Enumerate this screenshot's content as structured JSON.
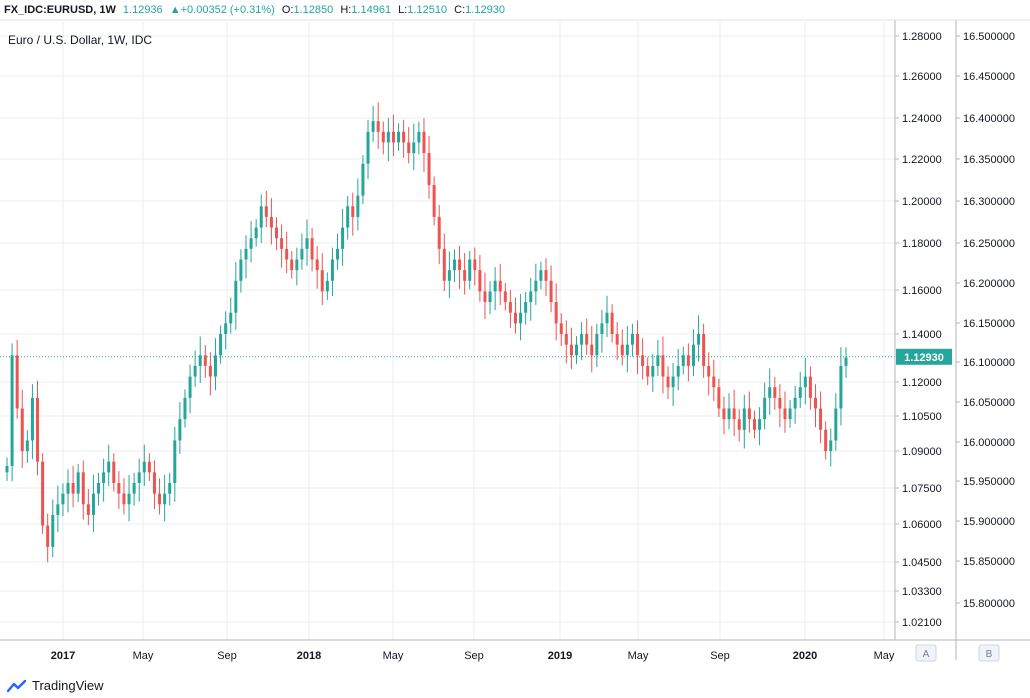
{
  "header": {
    "symbol": "FX_IDC:EURUSD, 1W",
    "last": "1.12936",
    "change": "▲+0.00352 (+0.31%)",
    "open_label": "O:",
    "open": "1.12850",
    "high_label": "H:",
    "high": "1.14961",
    "low_label": "L:",
    "low": "1.12510",
    "close_label": "C:",
    "close": "1.12930"
  },
  "legend": {
    "title": "Euro / U.S. Dollar, 1W, IDC"
  },
  "footer": {
    "brand": "TradingView"
  },
  "axis_buttons": {
    "a": "A",
    "b": "B"
  },
  "colors": {
    "up": "#26a69a",
    "down": "#ef5350",
    "grid": "#e9ecf2",
    "price_line": "#26a69a",
    "axis": "#b2b5be"
  },
  "chart_data": {
    "type": "candlestick",
    "title": "Euro / U.S. Dollar, 1W, IDC",
    "last_price_label": "1.12930",
    "y_ticks_left": [
      "1.28000",
      "1.26000",
      "1.24000",
      "1.22000",
      "1.20000",
      "1.18000",
      "1.16000",
      "1.14000",
      "1.12000",
      "1.10500",
      "1.09000",
      "1.07500",
      "1.06000",
      "1.04500",
      "1.03300",
      "1.02100"
    ],
    "y_ticks_right": [
      "16.500000",
      "16.450000",
      "16.400000",
      "16.350000",
      "16.300000",
      "16.250000",
      "16.200000",
      "16.150000",
      "16.100000",
      "16.050000",
      "16.000000",
      "15.950000",
      "15.900000",
      "15.850000",
      "15.800000"
    ],
    "x_ticks": [
      "2017",
      "May",
      "Sep",
      "2018",
      "May",
      "Sep",
      "2019",
      "May",
      "Sep",
      "2020",
      "May"
    ],
    "x_tick_bold": [
      true,
      false,
      false,
      true,
      false,
      false,
      true,
      false,
      false,
      true,
      false
    ],
    "close_approx": [
      1.078,
      1.13,
      1.105,
      1.085,
      1.09,
      1.11,
      1.08,
      1.05,
      1.04,
      1.055,
      1.06,
      1.065,
      1.07,
      1.065,
      1.075,
      1.06,
      1.055,
      1.065,
      1.07,
      1.075,
      1.08,
      1.07,
      1.065,
      1.06,
      1.065,
      1.07,
      1.075,
      1.08,
      1.075,
      1.065,
      1.06,
      1.065,
      1.07,
      1.09,
      1.1,
      1.11,
      1.12,
      1.125,
      1.13,
      1.125,
      1.12,
      1.13,
      1.14,
      1.145,
      1.15,
      1.165,
      1.175,
      1.18,
      1.185,
      1.19,
      1.2,
      1.195,
      1.19,
      1.185,
      1.18,
      1.175,
      1.17,
      1.175,
      1.18,
      1.185,
      1.175,
      1.17,
      1.16,
      1.165,
      1.175,
      1.18,
      1.19,
      1.2,
      1.195,
      1.205,
      1.22,
      1.235,
      1.24,
      1.235,
      1.23,
      1.235,
      1.23,
      1.235,
      1.23,
      1.225,
      1.23,
      1.235,
      1.225,
      1.21,
      1.195,
      1.18,
      1.165,
      1.17,
      1.175,
      1.17,
      1.165,
      1.175,
      1.17,
      1.16,
      1.155,
      1.16,
      1.165,
      1.16,
      1.155,
      1.15,
      1.145,
      1.15,
      1.155,
      1.16,
      1.165,
      1.17,
      1.165,
      1.155,
      1.145,
      1.14,
      1.135,
      1.13,
      1.135,
      1.14,
      1.135,
      1.13,
      1.14,
      1.145,
      1.15,
      1.14,
      1.135,
      1.13,
      1.135,
      1.14,
      1.13,
      1.125,
      1.12,
      1.125,
      1.13,
      1.12,
      1.115,
      1.12,
      1.125,
      1.13,
      1.125,
      1.135,
      1.14,
      1.125,
      1.12,
      1.115,
      1.105,
      1.1,
      1.105,
      1.1,
      1.095,
      1.105,
      1.1,
      1.095,
      1.1,
      1.11,
      1.115,
      1.11,
      1.105,
      1.1,
      1.105,
      1.11,
      1.115,
      1.12,
      1.11,
      1.105,
      1.095,
      1.085,
      1.09,
      1.105,
      1.125,
      1.129
    ]
  }
}
